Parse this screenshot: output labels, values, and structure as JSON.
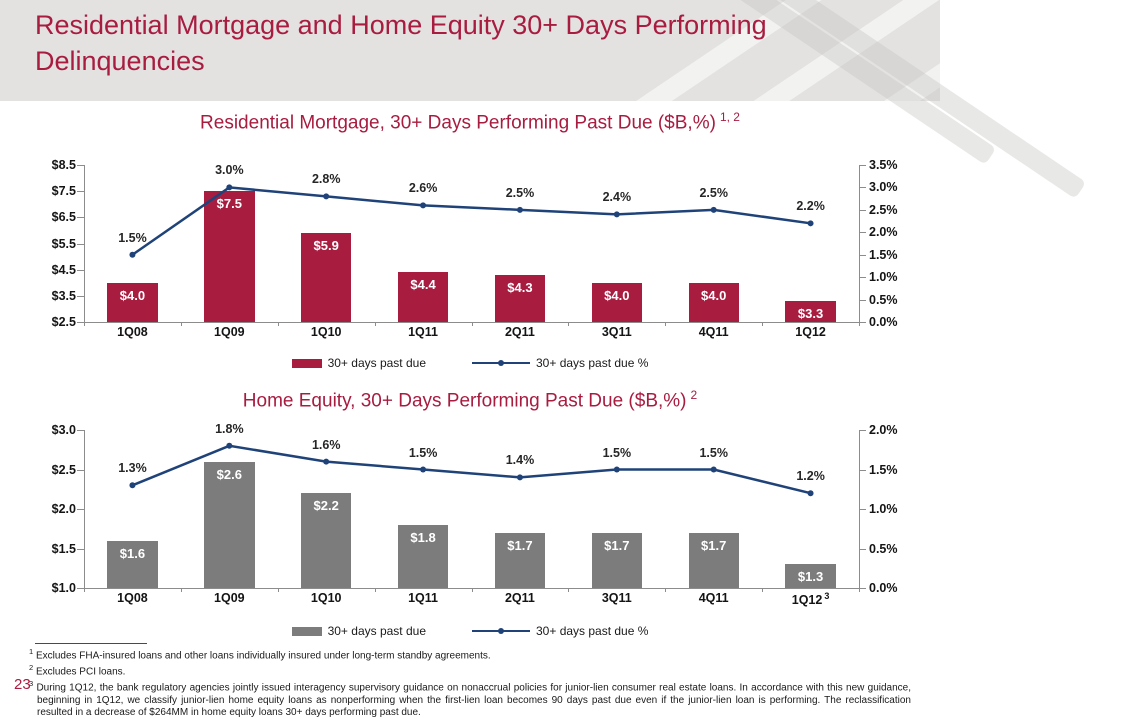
{
  "page": {
    "number": "23"
  },
  "header": {
    "title": "Residential Mortgage and Home Equity 30+ Days Performing Delinquencies"
  },
  "colors": {
    "crimson": "#a81c40",
    "navy": "#1f4379",
    "gray_bar": "#7c7c7c",
    "header_bg": "#e3e2e1",
    "axis_line": "#8c8c8c"
  },
  "chart_data": [
    {
      "type": "bar",
      "title": "Residential Mortgage, 30+ Days Performing Past Due ($B,%)",
      "title_superscript": "1, 2",
      "categories": [
        "1Q08",
        "1Q09",
        "1Q10",
        "1Q11",
        "2Q11",
        "3Q11",
        "4Q11",
        "1Q12"
      ],
      "series": [
        {
          "name": "30+ days past due",
          "type": "bar",
          "axis": "left",
          "color": "#a81c40",
          "values": [
            4.0,
            7.5,
            5.9,
            4.4,
            4.3,
            4.0,
            4.0,
            3.3
          ],
          "labels": [
            "$4.0",
            "$7.5",
            "$5.9",
            "$4.4",
            "$4.3",
            "$4.0",
            "$4.0",
            "$3.3"
          ]
        },
        {
          "name": "30+ days past due %",
          "type": "line",
          "axis": "right",
          "color": "#1f4379",
          "values": [
            1.5,
            3.0,
            2.8,
            2.6,
            2.5,
            2.4,
            2.5,
            2.2
          ],
          "labels": [
            "1.5%",
            "3.0%",
            "2.8%",
            "2.6%",
            "2.5%",
            "2.4%",
            "2.5%",
            "2.2%"
          ]
        }
      ],
      "left_axis": {
        "min": 2.5,
        "max": 8.5,
        "ticks": [
          "$8.5",
          "$7.5",
          "$6.5",
          "$5.5",
          "$4.5",
          "$3.5",
          "$2.5"
        ]
      },
      "right_axis": {
        "min": 0.0,
        "max": 3.5,
        "ticks": [
          "3.5%",
          "3.0%",
          "2.5%",
          "2.0%",
          "1.5%",
          "1.0%",
          "0.5%",
          "0.0%"
        ]
      },
      "legend_position": "bottom-center",
      "grid": "off"
    },
    {
      "type": "bar",
      "title": "Home Equity, 30+ Days Performing Past Due ($B,%)",
      "title_superscript": "2",
      "categories": [
        "1Q08",
        "1Q09",
        "1Q10",
        "1Q11",
        "2Q11",
        "3Q11",
        "4Q11",
        "1Q12"
      ],
      "category_superscripts": {
        "7": "3"
      },
      "series": [
        {
          "name": "30+ days past due",
          "type": "bar",
          "axis": "left",
          "color": "#7c7c7c",
          "values": [
            1.6,
            2.6,
            2.2,
            1.8,
            1.7,
            1.7,
            1.7,
            1.3
          ],
          "labels": [
            "$1.6",
            "$2.6",
            "$2.2",
            "$1.8",
            "$1.7",
            "$1.7",
            "$1.7",
            "$1.3"
          ]
        },
        {
          "name": "30+ days past due %",
          "type": "line",
          "axis": "right",
          "color": "#1f4379",
          "values": [
            1.3,
            1.8,
            1.6,
            1.5,
            1.4,
            1.5,
            1.5,
            1.2
          ],
          "labels": [
            "1.3%",
            "1.8%",
            "1.6%",
            "1.5%",
            "1.4%",
            "1.5%",
            "1.5%",
            "1.2%"
          ]
        }
      ],
      "left_axis": {
        "min": 1.0,
        "max": 3.0,
        "ticks": [
          "$3.0",
          "$2.5",
          "$2.0",
          "$1.5",
          "$1.0"
        ]
      },
      "right_axis": {
        "min": 0.0,
        "max": 2.0,
        "ticks": [
          "2.0%",
          "1.5%",
          "1.0%",
          "0.5%",
          "0.0%"
        ]
      },
      "legend_position": "bottom-center",
      "grid": "off"
    }
  ],
  "footnotes": [
    {
      "sup": "1",
      "text": "Excludes FHA-insured loans and other loans individually insured under long-term standby agreements."
    },
    {
      "sup": "2",
      "text": "Excludes PCI loans."
    },
    {
      "sup": "3",
      "text": "During 1Q12, the bank regulatory agencies jointly issued interagency supervisory guidance on nonaccrual policies for junior-lien consumer real estate loans. In accordance with this new guidance, beginning in 1Q12, we classify junior-lien home equity loans as nonperforming when the first-lien loan becomes 90 days past due even if the junior-lien loan is performing. The reclassification resulted in a decrease of $264MM in home equity loans 30+ days performing past due."
    }
  ]
}
